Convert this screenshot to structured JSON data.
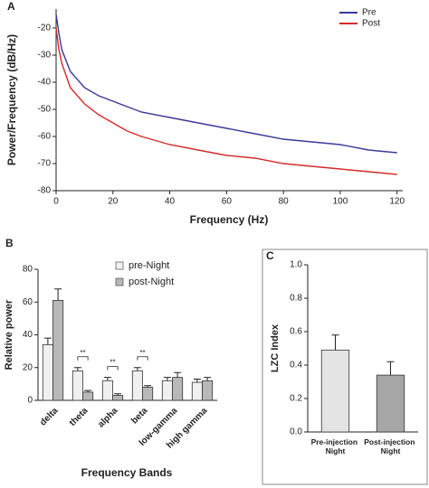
{
  "chart_data": [
    {
      "type": "line",
      "panel": "A",
      "xlabel": "Frequency (Hz)",
      "ylabel": "Power/Frequency (dB/Hz)",
      "x": [
        0,
        1,
        2,
        5,
        10,
        15,
        20,
        25,
        30,
        40,
        50,
        60,
        70,
        80,
        90,
        100,
        110,
        120
      ],
      "series": [
        {
          "name": "Pre",
          "color": "#3a3a9a",
          "values": [
            -15,
            -22,
            -28,
            -36,
            -42,
            -45,
            -47,
            -49,
            -51,
            -53,
            -55,
            -57,
            -59,
            -61,
            -62,
            -63,
            -65,
            -66
          ]
        },
        {
          "name": "Post",
          "color": "#d42a2a",
          "values": [
            -20,
            -28,
            -33,
            -42,
            -48,
            -52,
            -55,
            -58,
            -60,
            -63,
            -65,
            -67,
            -68,
            -70,
            -71,
            -72,
            -73,
            -74
          ]
        }
      ],
      "xlim": [
        0,
        122
      ],
      "xticks": [
        0,
        20,
        40,
        60,
        80,
        100,
        120
      ],
      "ylim": [
        -80,
        -13
      ],
      "yticks": [
        -20,
        -30,
        -40,
        -50,
        -60,
        -70,
        -80
      ],
      "legend": "top-right"
    },
    {
      "type": "bar",
      "panel": "B",
      "xlabel": "Frequency Bands",
      "ylabel": "Relative power",
      "categories": [
        "delta",
        "theta",
        "alpha",
        "beta",
        "low-gamma",
        "high gamma"
      ],
      "series": [
        {
          "name": "pre-Night",
          "color": "#f0f0f0",
          "values": [
            34,
            18,
            12,
            18,
            12,
            11
          ],
          "errors": [
            4,
            2,
            2,
            2,
            2,
            2
          ]
        },
        {
          "name": "post-Night",
          "color": "#b8b8b8",
          "values": [
            61,
            5,
            3,
            8,
            14,
            12
          ],
          "errors": [
            7,
            1,
            1,
            1,
            3,
            2
          ]
        }
      ],
      "annotations": [
        {
          "category": "theta",
          "text": "**"
        },
        {
          "category": "alpha",
          "text": "**"
        },
        {
          "category": "beta",
          "text": "**"
        }
      ],
      "ylim": [
        0,
        80
      ],
      "yticks": [
        0,
        20,
        40,
        60,
        80
      ],
      "legend": "top-right"
    },
    {
      "type": "bar",
      "panel": "C",
      "ylabel": "LZC Index",
      "categories": [
        "Pre-injection Night",
        "Post-injection Night"
      ],
      "series": [
        {
          "color": [
            "#e4e4e4",
            "#a6a6a6"
          ],
          "values": [
            0.49,
            0.34
          ],
          "errors": [
            0.09,
            0.08
          ]
        }
      ],
      "ylim": [
        0,
        1.0
      ],
      "yticks": [
        {
          "value": 0,
          "label": "0.0"
        },
        0.2,
        0.4,
        0.6,
        0.8,
        {
          "value": 1.0,
          "label": "1.0"
        }
      ]
    }
  ]
}
